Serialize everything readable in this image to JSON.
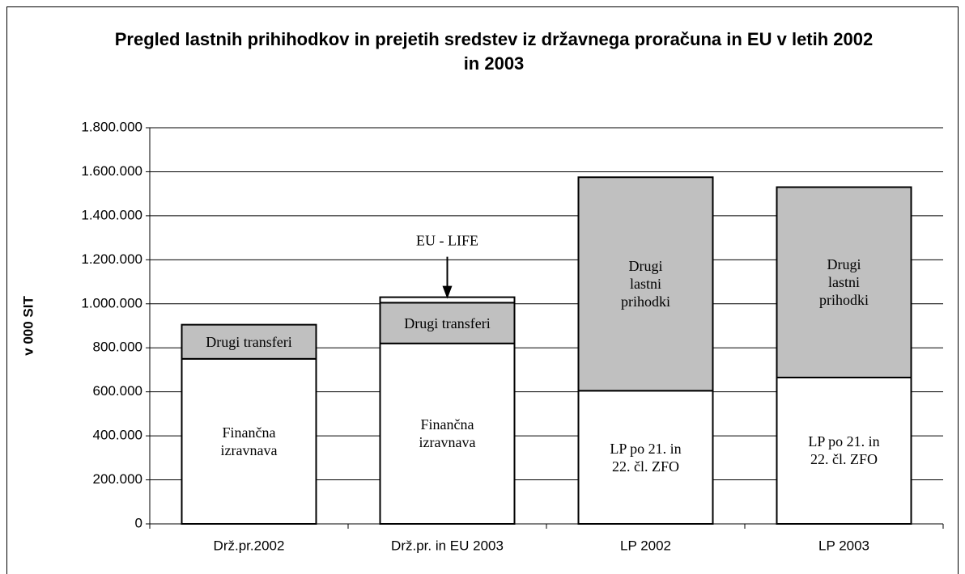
{
  "chart_data": {
    "type": "stacked_bar",
    "title": "Pregled lastnih prihihodkov in prejetih sredstev iz državnega proračuna in EU v letih 2002 in 2003",
    "ylabel": "v 000 SIT",
    "categories": [
      "Drž.pr.2002",
      "Drž.pr. in EU 2003",
      "LP 2002",
      "LP 2003"
    ],
    "series": [
      {
        "name": "Finančna izravnava",
        "color": "#ffffff",
        "values": [
          750000,
          820000,
          null,
          null
        ]
      },
      {
        "name": "LP po 21. in 22. čl. ZFO",
        "color": "#ffffff",
        "values": [
          null,
          null,
          605000,
          665000
        ]
      },
      {
        "name": "Drugi transferi",
        "color": "#c0c0c0",
        "values": [
          155000,
          185000,
          null,
          null
        ]
      },
      {
        "name": "EU - LIFE",
        "color": "#ffffff",
        "values": [
          null,
          25000,
          null,
          null
        ]
      },
      {
        "name": "Drugi lastni prihodki",
        "color": "#c0c0c0",
        "values": [
          null,
          null,
          970000,
          865000
        ]
      }
    ],
    "ylim": [
      0,
      1800000
    ],
    "yticks": [
      0,
      {
        "value": 200000,
        "label": "200.000"
      },
      {
        "value": 400000,
        "label": "400.000"
      },
      {
        "value": 600000,
        "label": "600.000"
      },
      {
        "value": 800000,
        "label": "800.000"
      },
      {
        "value": 1000000,
        "label": "1.000.000"
      },
      {
        "value": 1200000,
        "label": "1.200.000"
      },
      {
        "value": 1400000,
        "label": "1.400.000"
      },
      {
        "value": 1600000,
        "label": "1.600.000"
      },
      {
        "value": 1800000,
        "label": "1.800.000"
      }
    ],
    "grid": true
  }
}
